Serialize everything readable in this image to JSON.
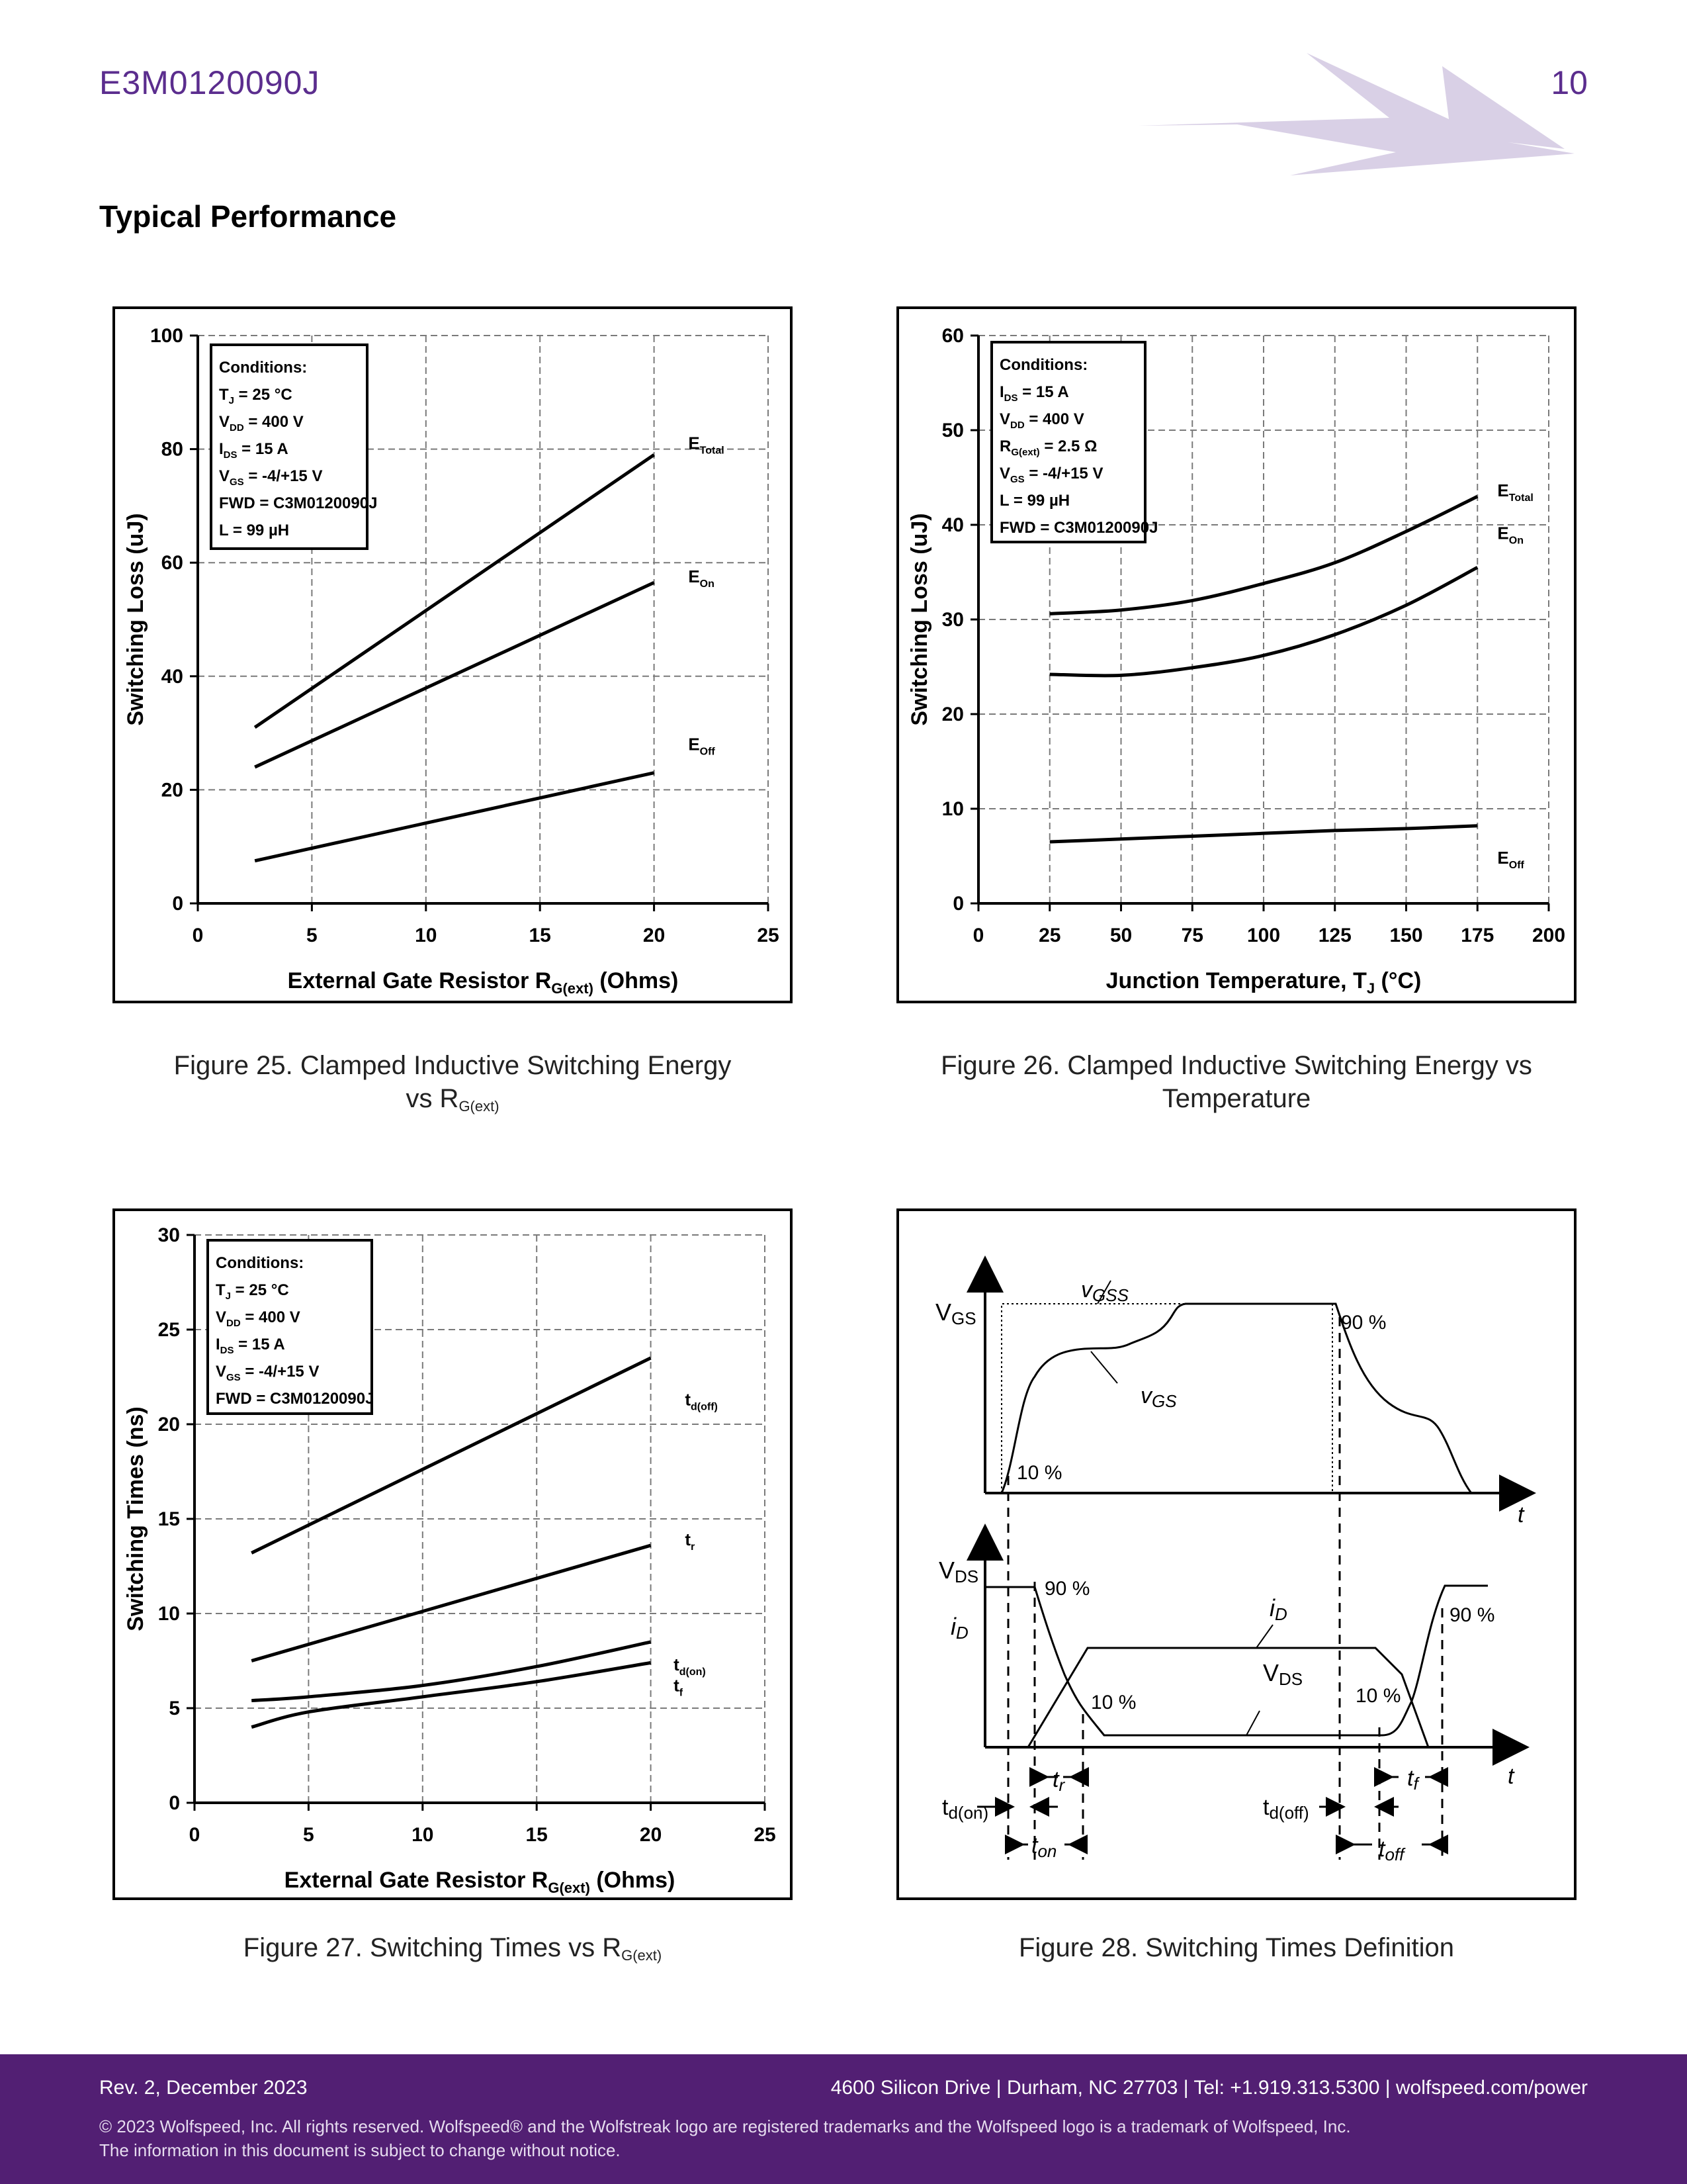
{
  "header": {
    "doc_code": "E3M0120090J",
    "page_number": "10",
    "logo": "wolfstreak-logo"
  },
  "section_title": "Typical Performance",
  "colors": {
    "brand_purple": "#5b2d8e",
    "footer_bg": "#521f73",
    "logo_light": "#d9d0e6"
  },
  "figures": {
    "fig25": {
      "caption_main": "Figure 25. Clamped Inductive Switching Energy",
      "caption_line2": "vs R",
      "caption_sub": "G(ext)"
    },
    "fig26": {
      "caption_main": "Figure 26. Clamped Inductive Switching Energy vs",
      "caption_line2": "Temperature"
    },
    "fig27": {
      "caption_main": "Figure 27. Switching Times vs R",
      "caption_sub": "G(ext)"
    },
    "fig28": {
      "caption_main": "Figure 28. Switching Times Definition"
    }
  },
  "chart_data": [
    {
      "id": "fig25",
      "type": "line",
      "xlabel": "External Gate Resistor R",
      "xlabel_sub": "G(ext)",
      "xlabel_suffix": " (Ohms)",
      "ylabel": "Switching Loss (uJ)",
      "xlim": [
        0,
        25
      ],
      "ylim": [
        0,
        100
      ],
      "xticks": [
        0,
        5,
        10,
        15,
        20,
        25
      ],
      "yticks": [
        0,
        20,
        40,
        60,
        80,
        100
      ],
      "grid": true,
      "conditions": [
        "Conditions:",
        "T_J = 25 °C",
        "V_DD =  400 V",
        "I_DS =  15 A",
        "V_GS = -4/+15 V",
        "FWD = C3M0120090J",
        "L = 99 µH"
      ],
      "series": [
        {
          "name": "E_Total",
          "x": [
            2.5,
            20
          ],
          "y": [
            31,
            79
          ]
        },
        {
          "name": "E_On",
          "x": [
            2.5,
            20
          ],
          "y": [
            24,
            56.5
          ]
        },
        {
          "name": "E_Off",
          "x": [
            2.5,
            20
          ],
          "y": [
            7.5,
            23
          ]
        }
      ]
    },
    {
      "id": "fig26",
      "type": "line",
      "xlabel": "Junction Temperature, T",
      "xlabel_sub": "J",
      "xlabel_suffix": " (°C)",
      "ylabel": "Switching Loss (uJ)",
      "xlim": [
        0,
        200
      ],
      "ylim": [
        0,
        60
      ],
      "xticks": [
        0,
        25,
        50,
        75,
        100,
        125,
        150,
        175,
        200
      ],
      "yticks": [
        0,
        10,
        20,
        30,
        40,
        50,
        60
      ],
      "grid": true,
      "conditions": [
        "Conditions:",
        "I_DS = 15 A",
        "V_DD = 400 V",
        "R_G(ext) = 2.5 Ω",
        "V_GS = -4/+15 V",
        "L = 99 µH",
        "FWD = C3M0120090J"
      ],
      "series": [
        {
          "name": "E_Total",
          "x": [
            25,
            50,
            75,
            100,
            125,
            150,
            175
          ],
          "y": [
            30.6,
            31,
            32,
            33.8,
            36,
            39.3,
            43
          ]
        },
        {
          "name": "E_On",
          "x": [
            25,
            50,
            75,
            100,
            125,
            150,
            175
          ],
          "y": [
            24.2,
            24.1,
            24.9,
            26.2,
            28.4,
            31.5,
            35.5
          ]
        },
        {
          "name": "E_Off",
          "x": [
            25,
            50,
            75,
            100,
            125,
            150,
            175
          ],
          "y": [
            6.5,
            6.8,
            7.1,
            7.4,
            7.7,
            7.9,
            8.2
          ]
        }
      ]
    },
    {
      "id": "fig27",
      "type": "line",
      "xlabel": "External Gate Resistor R",
      "xlabel_sub": "G(ext)",
      "xlabel_suffix": " (Ohms)",
      "ylabel": "Switching Times (ns)",
      "xlim": [
        0,
        25
      ],
      "ylim": [
        0,
        30
      ],
      "xticks": [
        0,
        5,
        10,
        15,
        20,
        25
      ],
      "yticks": [
        0,
        5,
        10,
        15,
        20,
        25,
        30
      ],
      "grid": true,
      "conditions": [
        "Conditions:",
        "T_J = 25 °C",
        "V_DD = 400 V",
        "I_DS = 15 A",
        "V_GS = -4/+15 V",
        "FWD = C3M0120090J"
      ],
      "series": [
        {
          "name": "t_d(off)",
          "x": [
            2.5,
            20
          ],
          "y": [
            13.2,
            23.5
          ]
        },
        {
          "name": "t_r",
          "x": [
            2.5,
            20
          ],
          "y": [
            7.5,
            13.6
          ]
        },
        {
          "name": "t_d(on)",
          "x": [
            2.5,
            5,
            10,
            15,
            20
          ],
          "y": [
            5.4,
            5.6,
            6.2,
            7.2,
            8.5
          ]
        },
        {
          "name": "t_f",
          "x": [
            2.5,
            5,
            10,
            15,
            20
          ],
          "y": [
            4.0,
            4.8,
            5.6,
            6.4,
            7.4
          ]
        }
      ]
    }
  ],
  "fig28_labels": {
    "v_gs": "V",
    "v_gs_sub": "GS",
    "v_gss": "v",
    "v_gss_sub": "GSS",
    "v_gs_curve": "v",
    "v_gs_curve_sub": "GS",
    "pct90": "90 %",
    "pct10": "10 %",
    "t": "t",
    "v_ds": "V",
    "v_ds_sub": "DS",
    "i_d": "i",
    "i_d_sub": "D",
    "i_d_curve": "i",
    "i_d_curve_sub": "D",
    "v_ds_curve": "V",
    "v_ds_curve_sub": "DS",
    "tr": "t",
    "tr_sub": "r",
    "tf": "t",
    "tf_sub": "f",
    "tdon": "t",
    "tdon_sub": "d(on)",
    "tdoff": "t",
    "tdoff_sub": "d(off)",
    "ton": "t",
    "ton_sub": "on",
    "toff": "t",
    "toff_sub": "off"
  },
  "footer": {
    "revision": "Rev. 2, December 2023",
    "address": "4600 Silicon Drive  |  Durham, NC 27703  |  Tel: +1.919.313.5300  |  wolfspeed.com/power",
    "copyright": "© 2023 Wolfspeed, Inc. All rights reserved. Wolfspeed® and the Wolfstreak logo are registered trademarks and the Wolfspeed logo is a trademark of Wolfspeed, Inc.",
    "notice": "The information in this document is subject to change without notice."
  }
}
